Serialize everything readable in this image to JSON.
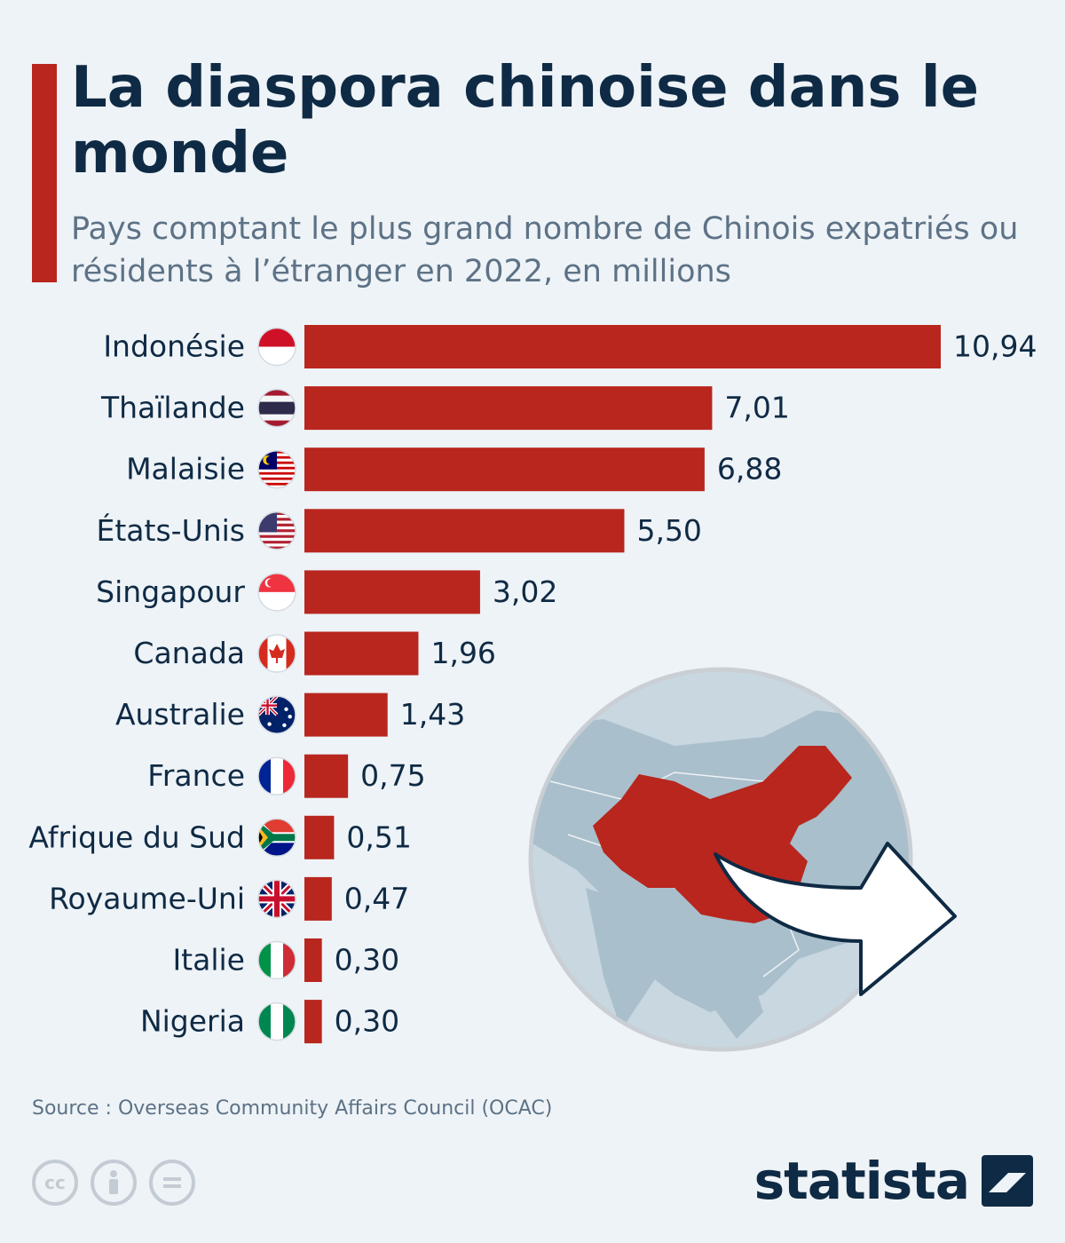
{
  "header": {
    "title": "La diaspora chinoise dans le monde",
    "subtitle": "Pays comptant le plus grand nombre de Chinois expatriés ou résidents à l’étranger en 2022, en millions"
  },
  "chart_data": {
    "type": "bar",
    "orientation": "horizontal",
    "title": "La diaspora chinoise dans le monde",
    "subtitle": "Pays comptant le plus grand nombre de Chinois expatriés ou résidents à l’étranger en 2022, en millions",
    "categories": [
      "Indonésie",
      "Thaïlande",
      "Malaisie",
      "États-Unis",
      "Singapour",
      "Canada",
      "Australie",
      "France",
      "Afrique du Sud",
      "Royaume-Uni",
      "Italie",
      "Nigeria"
    ],
    "values": [
      10.94,
      7.01,
      6.88,
      5.5,
      3.02,
      1.96,
      1.43,
      0.75,
      0.51,
      0.47,
      0.3,
      0.3
    ],
    "value_labels": [
      "10,94",
      "7,01",
      "6,88",
      "5,50",
      "3,02",
      "1,96",
      "1,43",
      "0,75",
      "0,51",
      "0,47",
      "0,30",
      "0,30"
    ],
    "flags": [
      "indonesia-flag-icon",
      "thailand-flag-icon",
      "malaysia-flag-icon",
      "usa-flag-icon",
      "singapore-flag-icon",
      "canada-flag-icon",
      "australia-flag-icon",
      "france-flag-icon",
      "south-africa-flag-icon",
      "uk-flag-icon",
      "italy-flag-icon",
      "nigeria-flag-icon"
    ],
    "bar_color": "#b8261e",
    "grid": false,
    "legend": "none"
  },
  "illustration": {
    "globe_icon": "globe-china-map-icon",
    "arrow_icon": "outgoing-arrow-icon",
    "china_color": "#b8261e",
    "land_color": "#a9bfcc",
    "sea_color": "#c8d7e0"
  },
  "footer": {
    "source": "Source : Overseas Community Affairs Council (OCAC)",
    "license_icons": [
      "cc-icon",
      "attribution-icon",
      "no-derivatives-icon"
    ],
    "brand": "statista"
  }
}
